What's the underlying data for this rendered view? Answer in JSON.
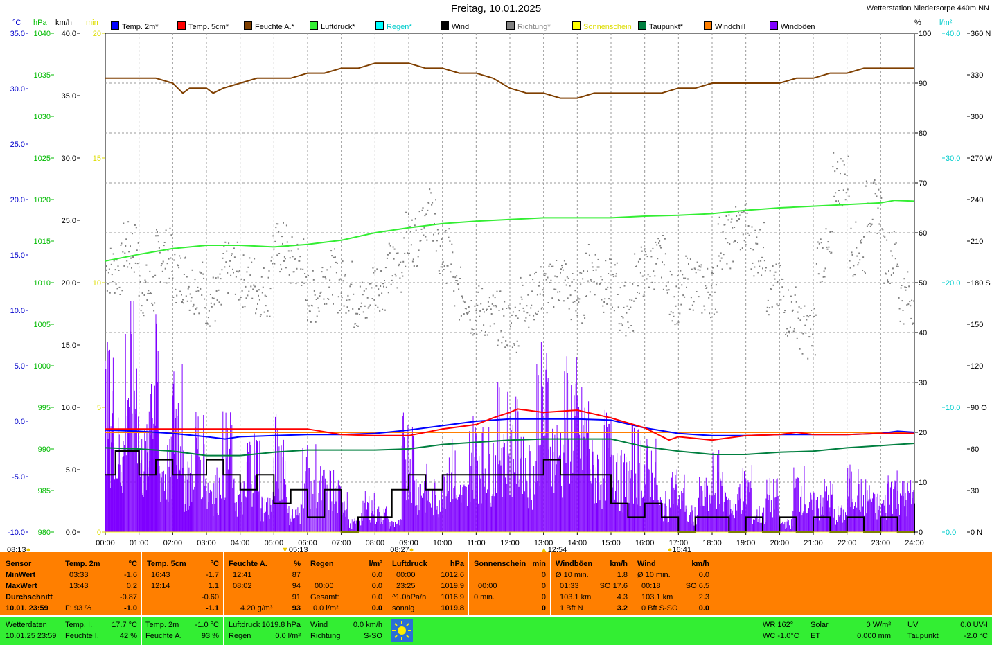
{
  "header": {
    "title": "Freitag, 10.01.2025",
    "station": "Wetterstation Niedersorpe 440m NN"
  },
  "units": {
    "c": "°C",
    "hpa": "hPa",
    "kmh": "km/h",
    "min": "min",
    "pct": "%",
    "lm2": "l/m²"
  },
  "legend": [
    {
      "label": "Temp. 2m*",
      "color": "#0000ff"
    },
    {
      "label": "Temp. 5cm*",
      "color": "#ff0000"
    },
    {
      "label": "Feuchte A.*",
      "color": "#7f3f00"
    },
    {
      "label": "Luftdruck*",
      "color": "#33ee33"
    },
    {
      "label": "Regen*",
      "color": "#00ffff"
    },
    {
      "label": "Wind",
      "color": "#000000"
    },
    {
      "label": "Richtung*",
      "color": "#808080"
    },
    {
      "label": "Sonnenschein",
      "color": "#ffff00"
    },
    {
      "label": "Taupunkt*",
      "color": "#007f3f"
    },
    {
      "label": "Windchill",
      "color": "#ff7f00"
    },
    {
      "label": "Windböen",
      "color": "#7f00ff"
    }
  ],
  "chart_data": {
    "type": "line",
    "x_ticks": [
      "00:00",
      "01:00",
      "02:00",
      "03:00",
      "04:00",
      "05:00",
      "06:00",
      "07:00",
      "08:00",
      "09:00",
      "10:00",
      "11:00",
      "12:00",
      "13:00",
      "14:00",
      "15:00",
      "16:00",
      "17:00",
      "18:00",
      "19:00",
      "20:00",
      "21:00",
      "22:00",
      "23:00",
      "24:00"
    ],
    "axes": {
      "temp": {
        "ticks": [
          "35.0",
          "30.0",
          "25.0",
          "20.0",
          "15.0",
          "10.0",
          "5.0",
          "0.0",
          "-5.0",
          "-10.0"
        ],
        "range": [
          -10,
          35
        ],
        "color": "#0000cc"
      },
      "pressure": {
        "ticks": [
          "1040",
          "1035",
          "1030",
          "1025",
          "1020",
          "1015",
          "1010",
          "1005",
          "1000",
          "995",
          "990",
          "985",
          "980"
        ],
        "range": [
          980,
          1040
        ],
        "color": "#00bb00"
      },
      "wind": {
        "ticks": [
          "40.0",
          "35.0",
          "30.0",
          "25.0",
          "20.0",
          "15.0",
          "10.0",
          "5.0",
          "0.0"
        ],
        "range": [
          0,
          40
        ],
        "color": "#000000"
      },
      "sun": {
        "ticks": [
          "20",
          "15",
          "10",
          "5",
          "0"
        ],
        "range": [
          0,
          20
        ],
        "color": "#dddd00"
      },
      "humidity": {
        "ticks": [
          "100",
          "90",
          "80",
          "70",
          "60",
          "50",
          "40",
          "30",
          "20",
          "10",
          "0"
        ],
        "range": [
          0,
          100
        ],
        "color": "#000000"
      },
      "rain": {
        "ticks": [
          "40.0",
          "30.0",
          "20.0",
          "10.0",
          "0.0"
        ],
        "range": [
          0,
          40
        ],
        "color": "#00cccc"
      },
      "direction": {
        "ticks": [
          "360 N",
          "330",
          "300",
          "270 W",
          "240",
          "210",
          "180 S",
          "150",
          "120",
          "90 O",
          "60",
          "30",
          "0 N"
        ],
        "range": [
          0,
          360
        ],
        "color": "#000000"
      }
    },
    "series": [
      {
        "name": "Temp. 2m*",
        "axis": "temp",
        "color": "#0000ff",
        "x": [
          0,
          1,
          2,
          3,
          3.55,
          4,
          5,
          6,
          7,
          8,
          9,
          10,
          11,
          12,
          13,
          13.72,
          14,
          15,
          16,
          17,
          18,
          19,
          20,
          21,
          22,
          23,
          23.5,
          24
        ],
        "y": [
          -0.8,
          -0.9,
          -1.1,
          -1.4,
          -1.6,
          -1.4,
          -1.3,
          -1.2,
          -1.2,
          -1.1,
          -0.8,
          -0.4,
          0.0,
          0.2,
          0.2,
          0.2,
          0.2,
          0.1,
          -0.6,
          -1.1,
          -1.3,
          -1.3,
          -1.2,
          -1.2,
          -1.2,
          -1.1,
          -0.9,
          -1.0
        ]
      },
      {
        "name": "Temp. 5cm*",
        "axis": "temp",
        "color": "#ff0000",
        "x": [
          0,
          1,
          2,
          3,
          4,
          5,
          6,
          7,
          8,
          9,
          10,
          11,
          11.5,
          12,
          12.23,
          13,
          14,
          15,
          16,
          16.72,
          17,
          18,
          19,
          20,
          20.5,
          21,
          22,
          23,
          24
        ],
        "y": [
          -0.7,
          -0.7,
          -0.7,
          -0.7,
          -0.7,
          -0.7,
          -0.7,
          -1.2,
          -1.3,
          -1.3,
          -0.7,
          -0.3,
          0.3,
          0.8,
          1.1,
          0.8,
          1.0,
          0.3,
          -0.6,
          -1.7,
          -1.4,
          -1.7,
          -1.3,
          -1.2,
          -1.0,
          -1.2,
          -1.2,
          -1.1,
          -1.1
        ]
      },
      {
        "name": "Feuchte A.*",
        "axis": "humidity",
        "color": "#7f3f00",
        "x": [
          0,
          0.5,
          1,
          1.5,
          2,
          2.3,
          2.5,
          3,
          3.2,
          3.5,
          4,
          4.5,
          5,
          5.5,
          6,
          6.5,
          7,
          7.5,
          8,
          8.5,
          9,
          9.5,
          10,
          10.5,
          11,
          11.5,
          12,
          12.5,
          13,
          13.5,
          14,
          14.5,
          15,
          15.5,
          16,
          16.5,
          17,
          17.5,
          18,
          18.5,
          19,
          19.5,
          20,
          20.5,
          21,
          21.5,
          22,
          22.5,
          23,
          23.5,
          24
        ],
        "y": [
          91,
          91,
          91,
          91,
          90,
          88,
          89,
          89,
          88,
          89,
          90,
          91,
          91,
          91,
          92,
          92,
          93,
          93,
          94,
          94,
          94,
          93,
          93,
          92,
          92,
          91,
          89,
          88,
          88,
          87,
          87,
          88,
          88,
          88,
          88,
          88,
          89,
          89,
          90,
          90,
          90,
          90,
          90,
          91,
          91,
          92,
          92,
          93,
          93,
          93,
          93
        ]
      },
      {
        "name": "Luftdruck*",
        "axis": "pressure",
        "color": "#33ee33",
        "x": [
          0,
          1,
          2,
          3,
          4,
          5,
          6,
          7,
          8,
          9,
          10,
          11,
          12,
          13,
          14,
          15,
          16,
          17,
          18,
          19,
          20,
          21,
          22,
          23,
          23.42,
          24
        ],
        "y": [
          1012.6,
          1013.4,
          1014.1,
          1014.5,
          1014.5,
          1014.3,
          1014.6,
          1015.1,
          1016.0,
          1016.6,
          1017.1,
          1017.4,
          1017.6,
          1017.8,
          1017.8,
          1017.8,
          1018.0,
          1018.1,
          1018.3,
          1018.7,
          1019.0,
          1019.2,
          1019.4,
          1019.6,
          1019.9,
          1019.8
        ]
      },
      {
        "name": "Regen*",
        "axis": "rain",
        "color": "#00ffff",
        "x": [
          0,
          24
        ],
        "y": [
          0,
          0
        ]
      },
      {
        "name": "Wind",
        "axis": "wind",
        "color": "#000000",
        "x": [
          0,
          0.3,
          0.5,
          1,
          1.5,
          2,
          2.5,
          3,
          3.5,
          4,
          4.5,
          5,
          5.5,
          6,
          6.5,
          7,
          7.5,
          8,
          8.5,
          9,
          9.5,
          10,
          10.5,
          11,
          11.5,
          12,
          12.5,
          13,
          13.5,
          14,
          14.5,
          15,
          15.5,
          16,
          16.5,
          17,
          17.5,
          18,
          18.5,
          19,
          19.5,
          20,
          20.5,
          21,
          21.5,
          22,
          22.5,
          23,
          23.5,
          24
        ],
        "y": [
          4.6,
          6.5,
          6.5,
          4.6,
          5.8,
          4.6,
          4.6,
          5.8,
          4.6,
          3.4,
          4.6,
          2.3,
          3.4,
          1.2,
          3.4,
          0.0,
          1.2,
          1.2,
          3.4,
          4.6,
          3.4,
          4.6,
          4.6,
          4.6,
          4.6,
          4.6,
          4.6,
          5.8,
          4.6,
          4.6,
          4.6,
          2.3,
          1.2,
          2.3,
          1.2,
          0.0,
          1.2,
          1.2,
          0.0,
          1.2,
          0.0,
          1.2,
          0.0,
          1.2,
          0.0,
          1.2,
          0.0,
          1.2,
          0.0,
          2.3
        ]
      },
      {
        "name": "Taupunkt*",
        "axis": "temp",
        "color": "#007f3f",
        "x": [
          0,
          1,
          2,
          3,
          4,
          5,
          6,
          7,
          8,
          9,
          10,
          11,
          12,
          13,
          14,
          15,
          16,
          17,
          18,
          19,
          20,
          21,
          22,
          23,
          24
        ],
        "y": [
          -2.4,
          -2.5,
          -2.7,
          -3.1,
          -3.1,
          -2.8,
          -2.6,
          -2.6,
          -2.6,
          -2.5,
          -2.1,
          -1.9,
          -1.7,
          -1.6,
          -1.6,
          -1.6,
          -2.3,
          -2.7,
          -3.0,
          -3.0,
          -2.8,
          -2.7,
          -2.4,
          -2.2,
          -2.0
        ]
      },
      {
        "name": "Windchill",
        "axis": "temp",
        "color": "#ff7f00",
        "x": [
          0,
          24
        ],
        "y": [
          -1.0,
          -1.0
        ]
      },
      {
        "name": "Windböen",
        "axis": "wind",
        "color": "#7f00ff",
        "x": [
          0,
          0.3,
          0.6,
          1,
          1.3,
          1.6,
          2,
          2.3,
          2.6,
          3,
          3.4,
          3.8,
          4.2,
          4.6,
          5,
          5.4,
          5.8,
          6.3,
          6.8,
          7.2,
          7.6,
          8,
          8.4,
          8.8,
          9.2,
          9.6,
          10,
          10.4,
          10.8,
          11.2,
          11.6,
          12,
          12.4,
          12.8,
          13.2,
          13.6,
          14,
          14.4,
          14.8,
          15.2,
          15.6,
          16,
          16.4,
          16.8,
          17.2,
          17.6,
          18,
          18.4,
          18.8,
          19.2,
          19.6,
          20,
          20.4,
          20.8,
          21.2,
          21.6,
          22,
          22.4,
          22.8,
          23.2,
          23.6,
          24
        ],
        "y": [
          14,
          9,
          17,
          8,
          16,
          7,
          13,
          6,
          10,
          5,
          9,
          4,
          8,
          3,
          9,
          2,
          7,
          5,
          4,
          1,
          3,
          2,
          1,
          9,
          5,
          4,
          7,
          4,
          9,
          8,
          11,
          10,
          7,
          14,
          9,
          13,
          11,
          7,
          9,
          6,
          8,
          7,
          3,
          5,
          2,
          4,
          6,
          3,
          5,
          2,
          4,
          1,
          5,
          3,
          4,
          2,
          5,
          4,
          3,
          5,
          4,
          5
        ]
      },
      {
        "name": "Sonnenschein",
        "axis": "sun",
        "color": "#ffff00",
        "x": [
          0,
          24
        ],
        "y": [
          0,
          0
        ]
      }
    ],
    "direction_points_deg": [
      190,
      205,
      175,
      200,
      185,
      178,
      168,
      190,
      182,
      175,
      205,
      195,
      170,
      185,
      178,
      165,
      180,
      190,
      212,
      230,
      200,
      172,
      160,
      155,
      150,
      168,
      175,
      182,
      170,
      190,
      178,
      162,
      188,
      195,
      170,
      180,
      175,
      210,
      220,
      205,
      175,
      160,
      145,
      200,
      255,
      205,
      235,
      200,
      170
    ],
    "x_markers": [
      {
        "label": "08:13",
        "x": -0.1,
        "kind": "sunrise"
      },
      {
        "label": "05:13",
        "x": 5.22,
        "kind": "down"
      },
      {
        "label": "08:27",
        "x": 8.45,
        "kind": "sun"
      },
      {
        "label": "12:54",
        "x": 12.9,
        "kind": "up"
      },
      {
        "label": "16:41",
        "x": 16.68,
        "kind": "sunset"
      }
    ]
  },
  "stats": {
    "sensor": {
      "h": "Sensor",
      "min": "MinWert",
      "max": "MaxWert",
      "avg": "Durchschnitt",
      "date": "10.01. 23:59"
    },
    "t2m": {
      "h": "Temp. 2m",
      "u": "°C",
      "min_t": "03:33",
      "min_v": "-1.6",
      "max_t": "13:43",
      "max_v": "0.2",
      "avg": "-0.87",
      "cur_l": "F: 93 %",
      "cur": "-1.0"
    },
    "t5cm": {
      "h": "Temp. 5cm",
      "u": "°C",
      "min_t": "16:43",
      "min_v": "-1.7",
      "max_t": "12:14",
      "max_v": "1.1",
      "avg": "-0.60",
      "cur": "-1.1"
    },
    "hum": {
      "h": "Feuchte A.",
      "u": "%",
      "min_t": "12:41",
      "min_v": "87",
      "max_t": "08:02",
      "max_v": "94",
      "avg": "91",
      "cur_l": "4.20 g/m³",
      "cur": "93"
    },
    "rain": {
      "h": "Regen",
      "u": "l/m²",
      "min_v": "0.0",
      "max_t": "00:00",
      "max_v": "0.0",
      "avg_l": "Gesamt:",
      "avg": "0.0",
      "cur_l": "0.0 l/m²",
      "cur": "0.0"
    },
    "pres": {
      "h": "Luftdruck",
      "u": "hPa",
      "min_t": "00:00",
      "min_v": "1012.6",
      "max_t": "23:25",
      "max_v": "1019.9",
      "avg_l": "^1.0hPa/h",
      "avg": "1016.9",
      "cur_l": "sonnig",
      "cur": "1019.8"
    },
    "sun": {
      "h": "Sonnenschein",
      "u": "min",
      "min_v": "0",
      "max_t": "00:00",
      "max_v": "0",
      "avg_l": "0 min.",
      "avg": "0",
      "cur": "0"
    },
    "gust": {
      "h": "Windböen",
      "u": "km/h",
      "min_t": "Ø 10 min.",
      "min_v": "1.8",
      "max_t": "01:33",
      "max_v": "SO 17.6",
      "avg_l": "103.1 km",
      "avg": "4.3",
      "cur_l": "1 Bft N",
      "cur": "3.2"
    },
    "wind": {
      "h": "Wind",
      "u": "km/h",
      "min_t": "Ø 10 min.",
      "min_v": "0.0",
      "max_t": "00:18",
      "max_v": "SO 6.5",
      "avg_l": "103.1 km",
      "avg": "2.3",
      "cur_l": "0 Bft S-SO",
      "cur": "0.0"
    }
  },
  "current": {
    "wd_l": "Wetterdaten",
    "wd_v": "10.01.25 23:59",
    "ti_l": "Temp. I.",
    "ti_v": "17.7 °C",
    "fi_l": "Feuchte I.",
    "fi_v": "42 %",
    "t2_l": "Temp. 2m",
    "t2_v": "-1.0 °C",
    "fa_l": "Feuchte A.",
    "fa_v": "93 %",
    "lp_l": "Luftdruck",
    "lp_v": "1019.8 hPa",
    "rg_l": "Regen",
    "rg_v": "0.0 l/m²",
    "wi_l": "Wind",
    "wi_v": "0.0 km/h",
    "ri_l": "Richtung",
    "ri_v": "S-SO",
    "wr": "WR 162°",
    "wc": "WC -1.0°C",
    "so_l": "Solar",
    "so_v": "0 W/m²",
    "et_l": "ET",
    "et_v": "0.000 mm",
    "uv_l": "UV",
    "uv_v": "0.0 UV-I",
    "tp_l": "Taupunkt",
    "tp_v": "-2.0 °C"
  }
}
